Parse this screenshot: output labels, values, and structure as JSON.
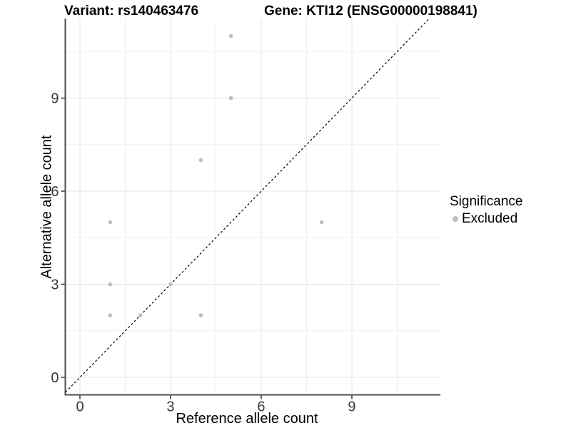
{
  "chart_data": {
    "type": "scatter",
    "title_left": "Variant: rs140463476",
    "title_right": "Gene: KTI12 (ENSG00000198841)",
    "xlabel": "Reference allele count",
    "ylabel": "Alternative allele count",
    "x_ticks": [
      0,
      3,
      6,
      9
    ],
    "y_ticks": [
      0,
      3,
      6,
      9
    ],
    "x_minor": [
      1.5,
      4.5,
      7.5,
      10.5
    ],
    "y_minor": [
      1.5,
      4.5,
      7.5,
      10.5
    ],
    "xlim": [
      -0.48,
      11.93
    ],
    "ylim": [
      -0.56,
      11.56
    ],
    "grid": true,
    "identity_line": {
      "equation": "y = x",
      "style": "dashed",
      "color": "#000000"
    },
    "series": [
      {
        "name": "Excluded",
        "color": "#bebebe",
        "points": [
          [
            1,
            2
          ],
          [
            1,
            3
          ],
          [
            1,
            5
          ],
          [
            2,
            2
          ],
          [
            3,
            3
          ],
          [
            4,
            2
          ],
          [
            4,
            7
          ],
          [
            5,
            9
          ],
          [
            5,
            11
          ],
          [
            8,
            5
          ]
        ]
      }
    ],
    "legend": {
      "position": "right",
      "title": "Significance",
      "items": [
        {
          "label": "Excluded",
          "color": "#bebebe"
        }
      ]
    },
    "colors": {
      "grid_major": "#e4e4e4",
      "grid_minor": "#f0f0f0",
      "axis_line": "#4d4d4d",
      "tick_mark": "#333333",
      "tick_label": "#383838",
      "point": "#bebebe",
      "text": "#000000",
      "background": "#ffffff"
    }
  }
}
